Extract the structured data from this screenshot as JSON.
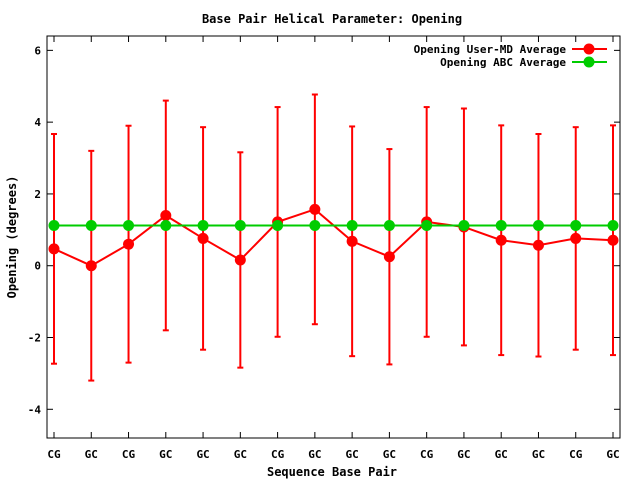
{
  "chart_data": {
    "type": "line",
    "title": "Base Pair Helical Parameter: Opening",
    "xlabel": "Sequence Base Pair",
    "ylabel": "Opening (degrees)",
    "categories": [
      "CG",
      "GC",
      "CG",
      "GC",
      "GC",
      "GC",
      "CG",
      "GC",
      "GC",
      "GC",
      "CG",
      "GC",
      "GC",
      "GC",
      "CG",
      "GC"
    ],
    "ylim": [
      -4.8,
      6.4
    ],
    "yticks": [
      -4,
      -2,
      0,
      2,
      4,
      6
    ],
    "ytick_labels": [
      "-4",
      "-2",
      "0",
      "2",
      "4",
      "6"
    ],
    "grid": false,
    "legend_position": "top-right",
    "series": [
      {
        "name": "Opening User-MD Average",
        "color": "#ff0000",
        "marker": "circle",
        "values": [
          0.47,
          0.0,
          0.6,
          1.4,
          0.76,
          0.16,
          1.22,
          1.57,
          0.68,
          0.25,
          1.22,
          1.08,
          0.71,
          0.57,
          0.76,
          0.71
        ],
        "errors": [
          3.2,
          3.2,
          3.3,
          3.2,
          3.1,
          3.0,
          3.2,
          3.2,
          3.2,
          3.0,
          3.2,
          3.3,
          3.2,
          3.1,
          3.1,
          3.2
        ]
      },
      {
        "name": "Opening ABC Average",
        "color": "#00cc00",
        "marker": "circle",
        "values": [
          1.12,
          1.12,
          1.12,
          1.12,
          1.12,
          1.12,
          1.12,
          1.12,
          1.12,
          1.12,
          1.12,
          1.12,
          1.12,
          1.12,
          1.12,
          1.12
        ]
      }
    ]
  }
}
